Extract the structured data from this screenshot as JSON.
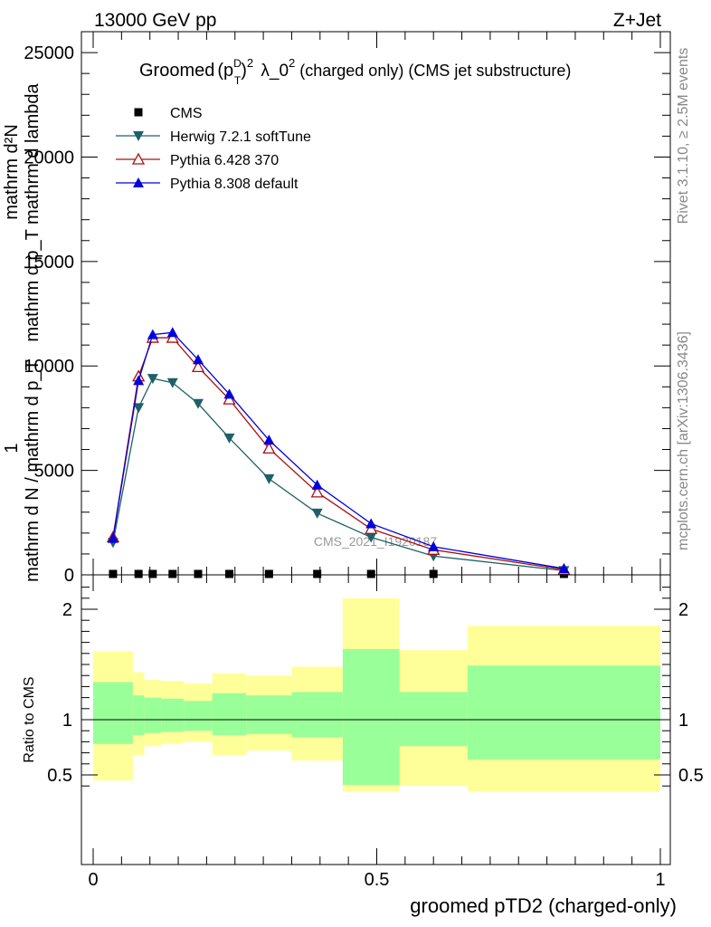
{
  "header": {
    "left": "13000 GeV pp",
    "right": "Z+Jet"
  },
  "side_labels": {
    "rivet": "Rivet 3.1.10, ≥ 2.5M events",
    "mcplots": "mcplots.cern.ch [arXiv:1306.3436]"
  },
  "watermark": "CMS_2021_I1920187",
  "chart_data": [
    {
      "type": "line",
      "title": {
        "lead": "Groomed",
        "sup1": "D",
        "sub": "T",
        "sup2": "2",
        "lambda": "λ_0",
        "sup3": "2",
        "tail": "(charged only) (CMS jet substructure)"
      },
      "ylabel": {
        "frac_num": "1",
        "frac_den": "mathrm d N / mathrm d p_T",
        "sub_T": "T",
        "rhs_num": "mathrm d²N",
        "rhs_den": "mathrm d p_T mathrm d lambda"
      },
      "ylim": [
        0,
        26000
      ],
      "yticks": [
        "0",
        "5000",
        "10000",
        "15000",
        "20000",
        "25000"
      ],
      "ytick_values": [
        0,
        5000,
        10000,
        15000,
        20000,
        25000
      ],
      "xlim": [
        -0.02,
        1.0
      ],
      "legend_position": "top-left",
      "x": [
        0.035,
        0.08,
        0.105,
        0.14,
        0.185,
        0.24,
        0.31,
        0.395,
        0.49,
        0.6,
        0.83
      ],
      "series": [
        {
          "name": "CMS",
          "marker": "square",
          "color": "#000000",
          "values": [
            0,
            0,
            0,
            0,
            0,
            0,
            0,
            0,
            0,
            0,
            0
          ]
        },
        {
          "name": "Herwig 7.2.1 softTune",
          "marker": "triangle-down-filled",
          "color": "#1f6068",
          "values": [
            1550,
            8000,
            9400,
            9200,
            8200,
            6550,
            4600,
            2950,
            1800,
            900,
            200
          ]
        },
        {
          "name": "Pythia 6.428 370",
          "marker": "triangle-up-open",
          "color": "#aa1111",
          "values": [
            1800,
            9500,
            11350,
            11350,
            9950,
            8400,
            6050,
            3950,
            2200,
            1200,
            250
          ]
        },
        {
          "name": "Pythia 8.308 default",
          "marker": "triangle-up-filled",
          "color": "#0000dd",
          "values": [
            1750,
            9300,
            11500,
            11600,
            10300,
            8650,
            6450,
            4300,
            2450,
            1350,
            300
          ]
        }
      ]
    },
    {
      "type": "area",
      "ylabel": "Ratio to CMS",
      "xlabel": "groomed pTD2 (charged-only)",
      "ylim": [
        0.35,
        2.25
      ],
      "yticks": [
        "0.5",
        "1",
        "2"
      ],
      "ytick_values": [
        0.5,
        1,
        2
      ],
      "xticks": [
        "0",
        "0.5",
        "1"
      ],
      "xtick_values": [
        0,
        0.5,
        1
      ],
      "bins": [
        {
          "lo": 0.0,
          "hi": 0.07,
          "green": [
            0.78,
            1.34
          ],
          "yellow": [
            0.45,
            1.62
          ]
        },
        {
          "lo": 0.07,
          "hi": 0.09,
          "green": [
            0.86,
            1.22
          ],
          "yellow": [
            0.68,
            1.43
          ]
        },
        {
          "lo": 0.09,
          "hi": 0.12,
          "green": [
            0.88,
            1.2
          ],
          "yellow": [
            0.76,
            1.36
          ]
        },
        {
          "lo": 0.12,
          "hi": 0.16,
          "green": [
            0.89,
            1.19
          ],
          "yellow": [
            0.78,
            1.35
          ]
        },
        {
          "lo": 0.16,
          "hi": 0.21,
          "green": [
            0.9,
            1.17
          ],
          "yellow": [
            0.8,
            1.33
          ]
        },
        {
          "lo": 0.21,
          "hi": 0.27,
          "green": [
            0.86,
            1.24
          ],
          "yellow": [
            0.68,
            1.42
          ]
        },
        {
          "lo": 0.27,
          "hi": 0.35,
          "green": [
            0.87,
            1.22
          ],
          "yellow": [
            0.72,
            1.4
          ]
        },
        {
          "lo": 0.35,
          "hi": 0.44,
          "green": [
            0.84,
            1.25
          ],
          "yellow": [
            0.63,
            1.48
          ]
        },
        {
          "lo": 0.44,
          "hi": 0.54,
          "green": [
            0.41,
            1.64
          ],
          "yellow": [
            0.35,
            2.1
          ]
        },
        {
          "lo": 0.54,
          "hi": 0.66,
          "green": [
            0.76,
            1.25
          ],
          "yellow": [
            0.4,
            1.63
          ]
        },
        {
          "lo": 0.66,
          "hi": 1.0,
          "green": [
            0.64,
            1.49
          ],
          "yellow": [
            0.35,
            1.85
          ]
        }
      ]
    }
  ]
}
